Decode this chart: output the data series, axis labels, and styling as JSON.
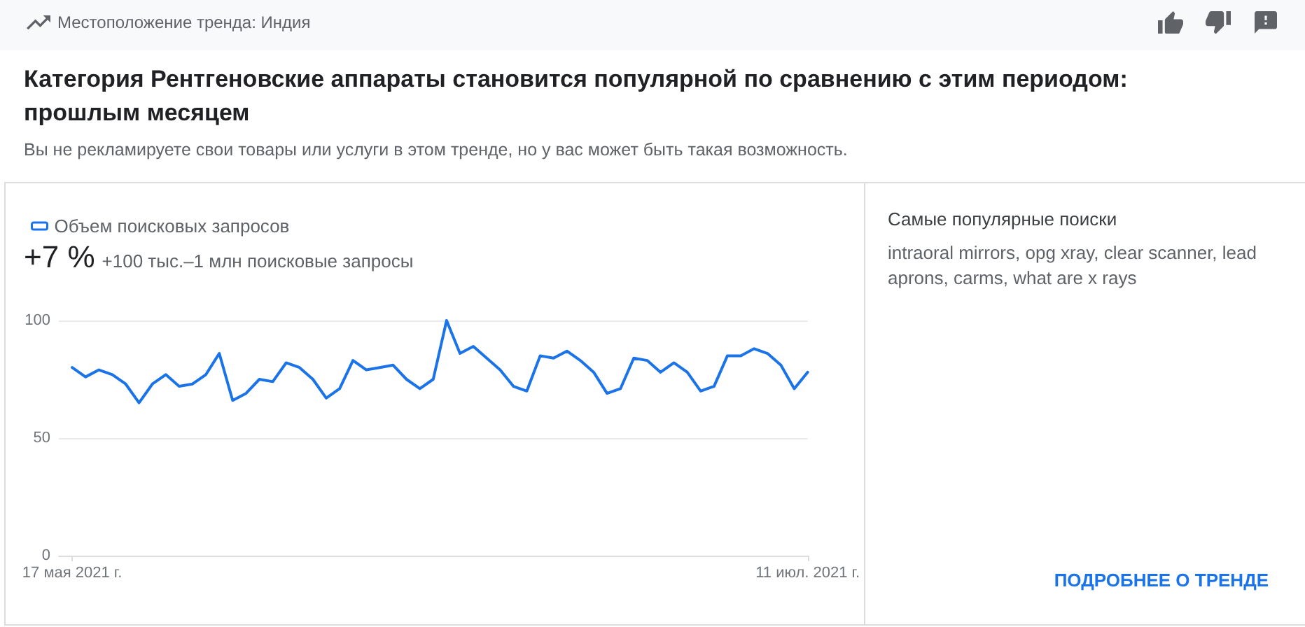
{
  "chart_data": {
    "type": "line",
    "title": "Категория Рентгеновские аппараты становится популярной по сравнению с этим периодом: прошлым месяцем",
    "subtitle": "Вы не рекламируете свои товары или услуги в этом тренде, но у вас может быть такая возможность.",
    "x": [
      "2021-05-17",
      "2021-05-18",
      "2021-05-19",
      "2021-05-20",
      "2021-05-21",
      "2021-05-22",
      "2021-05-23",
      "2021-05-24",
      "2021-05-25",
      "2021-05-26",
      "2021-05-27",
      "2021-05-28",
      "2021-05-29",
      "2021-05-30",
      "2021-05-31",
      "2021-06-01",
      "2021-06-02",
      "2021-06-03",
      "2021-06-04",
      "2021-06-05",
      "2021-06-06",
      "2021-06-07",
      "2021-06-08",
      "2021-06-09",
      "2021-06-10",
      "2021-06-11",
      "2021-06-12",
      "2021-06-13",
      "2021-06-14",
      "2021-06-15",
      "2021-06-16",
      "2021-06-17",
      "2021-06-18",
      "2021-06-19",
      "2021-06-20",
      "2021-06-21",
      "2021-06-22",
      "2021-06-23",
      "2021-06-24",
      "2021-06-25",
      "2021-06-26",
      "2021-06-27",
      "2021-06-28",
      "2021-06-29",
      "2021-06-30",
      "2021-07-01",
      "2021-07-02",
      "2021-07-03",
      "2021-07-04",
      "2021-07-05",
      "2021-07-06",
      "2021-07-07",
      "2021-07-08",
      "2021-07-09",
      "2021-07-10",
      "2021-07-11"
    ],
    "series": [
      {
        "name": "Объем поисковых запросов",
        "color": "#1a73e8",
        "values": [
          80,
          76,
          79,
          77,
          73,
          65,
          73,
          77,
          72,
          73,
          77,
          86,
          66,
          69,
          75,
          74,
          82,
          80,
          75,
          67,
          71,
          83,
          79,
          80,
          81,
          75,
          71,
          75,
          100,
          86,
          89,
          84,
          79,
          72,
          70,
          85,
          84,
          87,
          83,
          78,
          69,
          71,
          84,
          83,
          78,
          82,
          78,
          70,
          72,
          85,
          85,
          88,
          86,
          81,
          71,
          78
        ]
      }
    ],
    "xlim": [
      "2021-05-16",
      "2021-07-11"
    ],
    "xticks": [
      {
        "value": "2021-05-17",
        "label": "17 мая 2021 г."
      },
      {
        "value": "2021-07-11",
        "label": "11 июл. 2021 г."
      }
    ],
    "ylim": [
      0,
      100
    ],
    "yticks": [
      0,
      50,
      100
    ],
    "grid": "y",
    "legend": "top left",
    "marker": "none",
    "line_style": "solid",
    "annotations": [
      "Местоположение тренда: Индия",
      "+7 %",
      "+100 тыс.–1 млн поисковые запросы",
      "Самые популярные поиски",
      "intraoral mirrors, opg xray, clear scanner, lead aprons, carms, what are x rays",
      "ПОДРОБНЕЕ О ТРЕНДЕ"
    ]
  }
}
